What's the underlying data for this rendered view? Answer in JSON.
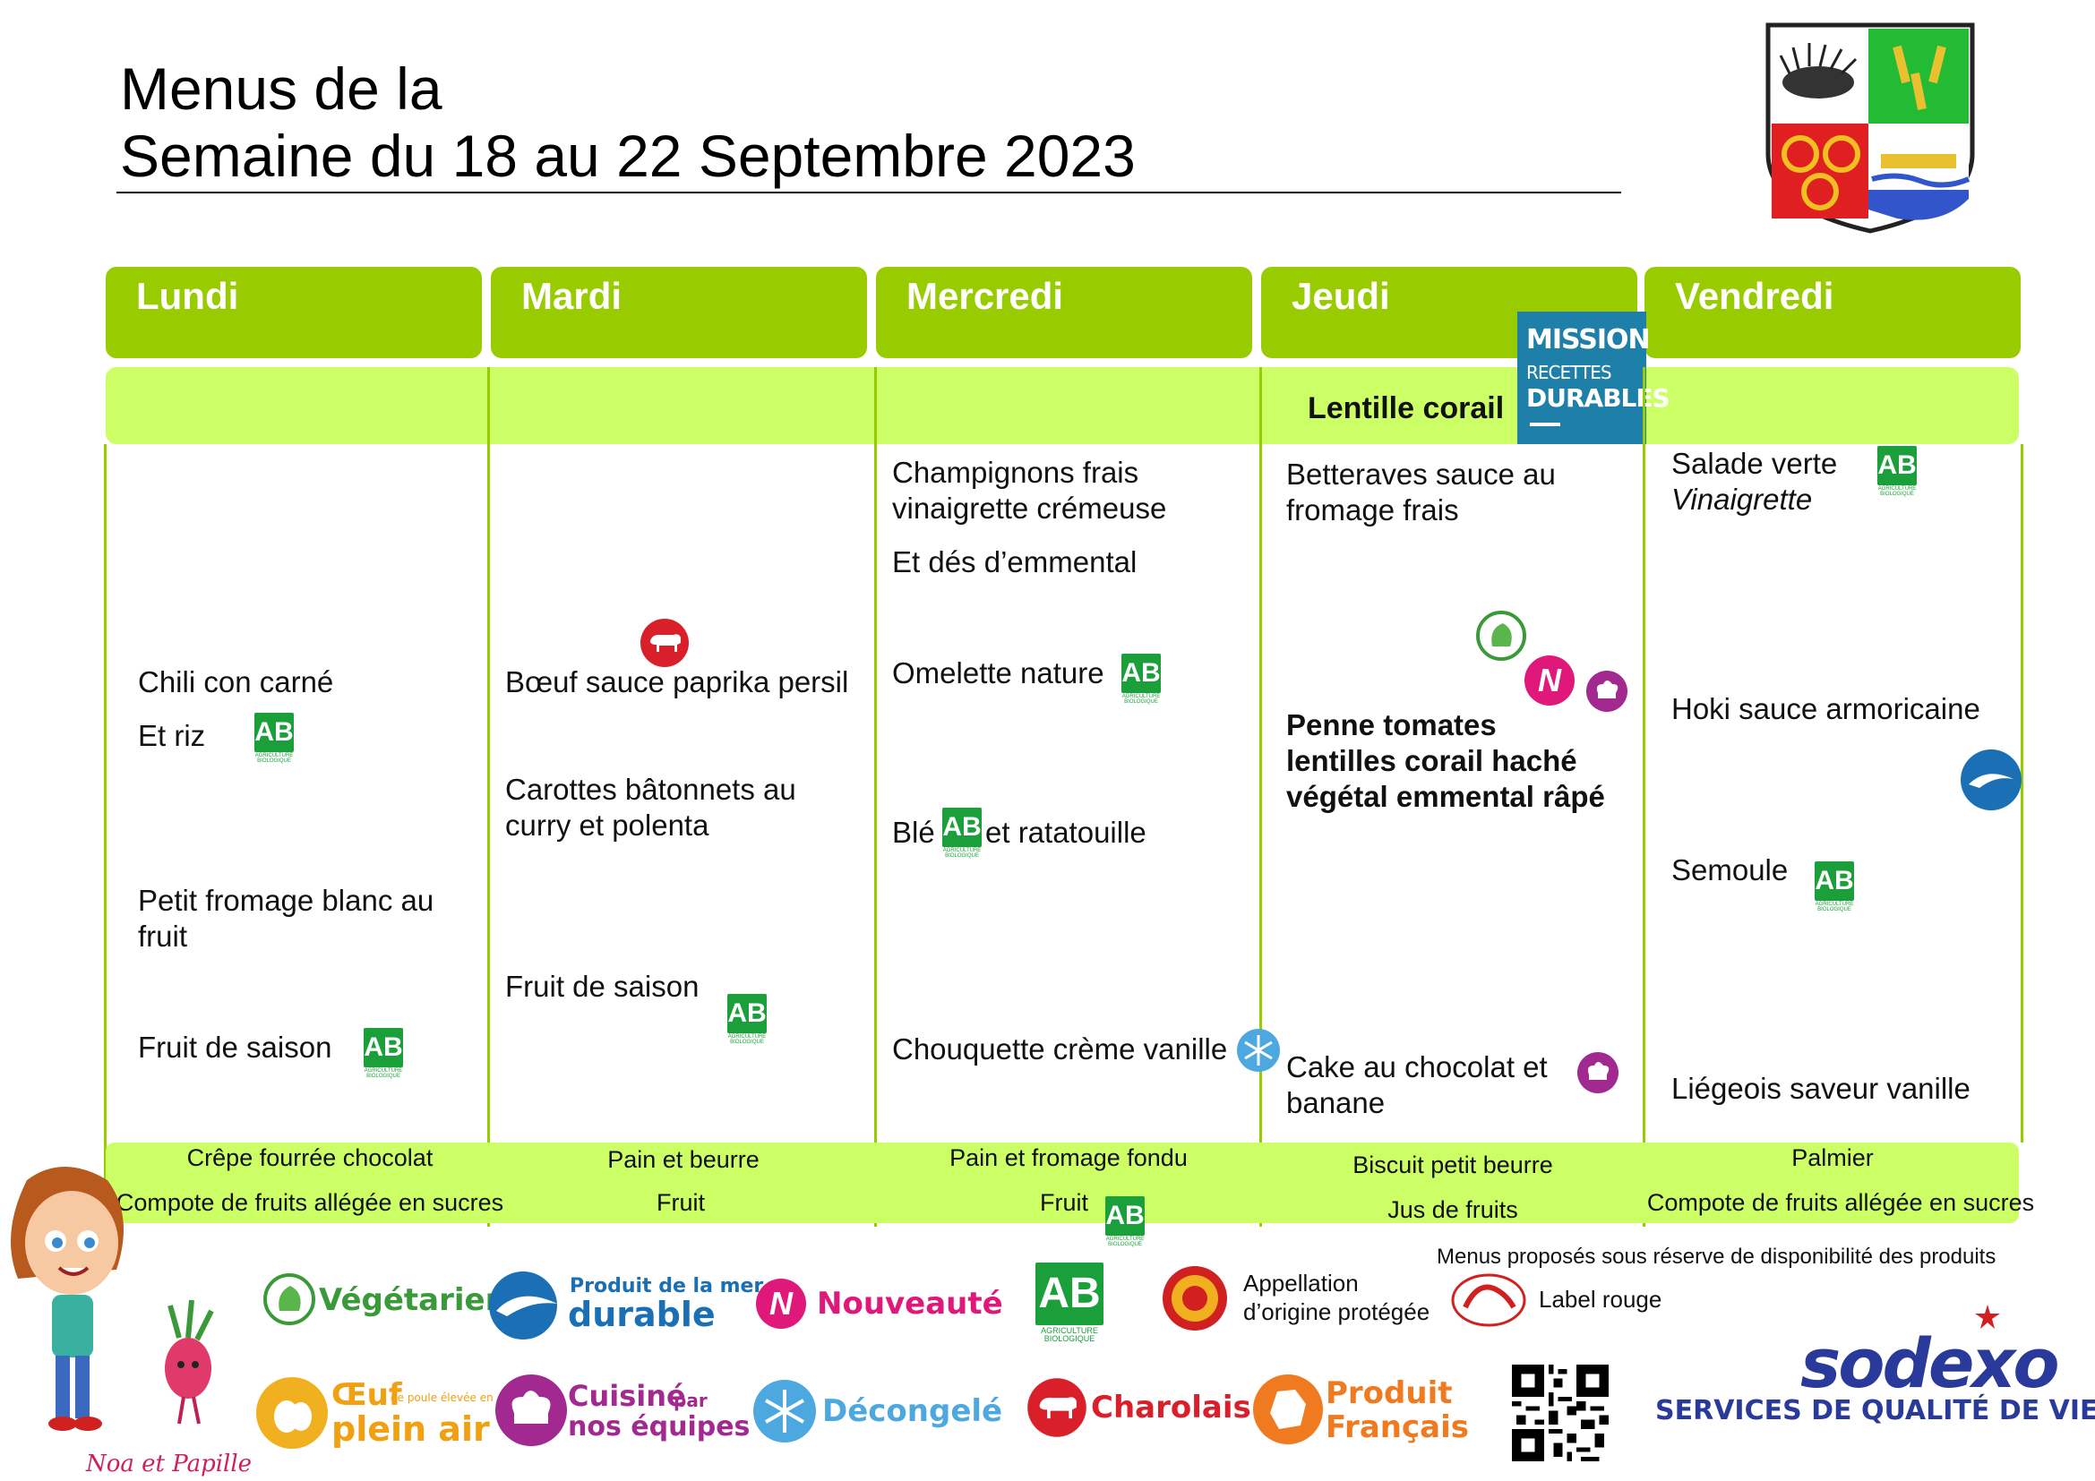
{
  "header": {
    "title_line1": "Menus de la",
    "title_line2": "Semaine du 18 au 22 Septembre 2023"
  },
  "days": [
    "Lundi",
    "Mardi",
    "Mercredi",
    "Jeudi",
    "Vendredi"
  ],
  "starter_band": {
    "jeudi": "Lentille corail"
  },
  "mission_badge": {
    "line1": "MISSION",
    "line2": "RECETTES",
    "line3": "DURABLES"
  },
  "menus": {
    "lundi": {
      "main": "Chili con carné",
      "side": "Et riz",
      "dairy_line1": "Petit fromage blanc au",
      "dairy_line2": "fruit",
      "dessert": "Fruit de saison"
    },
    "mardi": {
      "main": "Bœuf sauce paprika persil",
      "side_line1": "Carottes bâtonnets  au",
      "side_line2": "curry et polenta",
      "dessert": "Fruit de saison"
    },
    "mercredi": {
      "starter_line1": "Champignons frais",
      "starter_line2": "vinaigrette crémeuse",
      "starter_line3": "Et dés d’emmental",
      "main": "Omelette nature",
      "side_a": "Blé",
      "side_b": "et ratatouille",
      "dessert": "Chouquette crème vanille"
    },
    "jeudi": {
      "starter_line1": "Betteraves sauce au",
      "starter_line2": "fromage frais",
      "main_line1": "Penne tomates",
      "main_line2": "lentilles corail haché",
      "main_line3": "végétal emmental râpé",
      "dessert_line1": "Cake au chocolat et",
      "dessert_line2": "banane"
    },
    "vendredi": {
      "starter": "Salade verte",
      "starter_sub": "Vinaigrette",
      "main": "Hoki sauce armoricaine",
      "side": "Semoule",
      "dessert": "Liégeois saveur vanille"
    }
  },
  "gouter": {
    "lundi": [
      "Crêpe fourrée chocolat",
      "Compote de fruits allégée en sucres"
    ],
    "mardi": [
      "Pain et beurre",
      "Fruit"
    ],
    "mercredi": [
      "Pain et fromage fondu",
      "Fruit"
    ],
    "jeudi": [
      "Biscuit petit beurre",
      "Jus de fruits"
    ],
    "vendredi": [
      "Palmier",
      "Compote de fruits allégée en sucres"
    ]
  },
  "labels": {
    "ab": "AB",
    "ab_small": "AGRICULTURE BIOLOGIQUE",
    "n": "N"
  },
  "legend": {
    "disclaimer": "Menus proposés sous réserve de disponibilité des produits",
    "vegetarien": "Végétarien",
    "mer_line1": "Produit de la mer",
    "mer_line2": "durable",
    "nouveaute": "Nouveauté",
    "aop_line1": "Appellation",
    "aop_line2": "d’origine protégée",
    "label_rouge": "Label rouge",
    "oeuf_main": "Œuf",
    "oeuf_small": "de poule élevée en",
    "oeuf_line2": "plein air",
    "cuisine_line1": "Cuisiné",
    "cuisine_par": "par",
    "cuisine_line2": "nos équipes",
    "decongele": "Décongelé",
    "charolais": "Charolais",
    "produit_line1": "Produit",
    "produit_line2": "Français"
  },
  "mascot": {
    "caption": "Noa et Papille"
  },
  "brand": {
    "name": "sodexo",
    "tagline": "SERVICES DE QUALITÉ DE VIE"
  },
  "colors": {
    "header_green": "#99cc00",
    "band_green": "#ccff66",
    "ab_green": "#1a9f3a",
    "nouveaute_pink": "#e0187a",
    "cuisine_purple": "#a2298f",
    "charolais_red": "#d9202a",
    "durable_blue": "#1a6fb5",
    "sodexo_blue": "#2a3a9a"
  }
}
